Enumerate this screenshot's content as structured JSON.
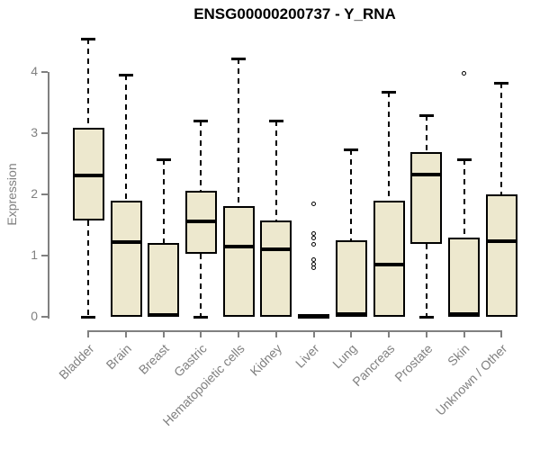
{
  "chart_data": {
    "type": "boxplot",
    "title": "ENSG00000200737 - Y_RNA",
    "xlabel": "",
    "ylabel": "Expression",
    "ylim": [
      0,
      4
    ],
    "yticks": [
      0,
      1,
      2,
      3,
      4
    ],
    "grid": false,
    "legend": "none",
    "categories": [
      "Bladder",
      "Brain",
      "Breast",
      "Gastric",
      "Hematopoietic cells",
      "Kidney",
      "Liver",
      "Lung",
      "Pancreas",
      "Prostate",
      "Skin",
      "Unknown / Other"
    ],
    "series": [
      {
        "name": "Bladder",
        "whisker_low": 0,
        "q1": 1.57,
        "median": 2.31,
        "q3": 3.09,
        "whisker_high": 4.55,
        "outliers": []
      },
      {
        "name": "Brain",
        "whisker_low": 0,
        "q1": 0.0,
        "median": 1.22,
        "q3": 1.9,
        "whisker_high": 3.95,
        "outliers": []
      },
      {
        "name": "Breast",
        "whisker_low": 0,
        "q1": 0.0,
        "median": 0.03,
        "q3": 1.2,
        "whisker_high": 2.58,
        "outliers": []
      },
      {
        "name": "Gastric",
        "whisker_low": 0,
        "q1": 1.03,
        "median": 1.56,
        "q3": 2.06,
        "whisker_high": 3.2,
        "outliers": []
      },
      {
        "name": "Hematopoietic cells",
        "whisker_low": 0,
        "q1": 0.0,
        "median": 1.14,
        "q3": 1.81,
        "whisker_high": 4.22,
        "outliers": []
      },
      {
        "name": "Kidney",
        "whisker_low": 0,
        "q1": 0.0,
        "median": 1.11,
        "q3": 1.57,
        "whisker_high": 3.2,
        "outliers": []
      },
      {
        "name": "Liver",
        "whisker_low": 0,
        "q1": 0.0,
        "median": 0.02,
        "q3": 0.03,
        "whisker_high": 0.03,
        "outliers": [
          1.84,
          1.36,
          1.29,
          1.18,
          0.93,
          0.86,
          0.8
        ]
      },
      {
        "name": "Lung",
        "whisker_low": 0,
        "q1": 0.0,
        "median": 0.04,
        "q3": 1.25,
        "whisker_high": 2.74,
        "outliers": []
      },
      {
        "name": "Pancreas",
        "whisker_low": 0,
        "q1": 0.0,
        "median": 0.85,
        "q3": 1.9,
        "whisker_high": 3.67,
        "outliers": []
      },
      {
        "name": "Prostate",
        "whisker_low": 0,
        "q1": 1.19,
        "median": 2.32,
        "q3": 2.69,
        "whisker_high": 3.3,
        "outliers": []
      },
      {
        "name": "Skin",
        "whisker_low": 0,
        "q1": 0.0,
        "median": 0.04,
        "q3": 1.3,
        "whisker_high": 2.58,
        "outliers": [
          3.98
        ]
      },
      {
        "name": "Unknown / Other",
        "whisker_low": 0,
        "q1": 0.0,
        "median": 1.24,
        "q3": 2.0,
        "whisker_high": 3.83,
        "outliers": []
      }
    ]
  },
  "colors": {
    "box_fill": "#ede8ce",
    "box_stroke": "#000000",
    "axis": "#808080",
    "title": "#000000",
    "background": "#ffffff"
  }
}
